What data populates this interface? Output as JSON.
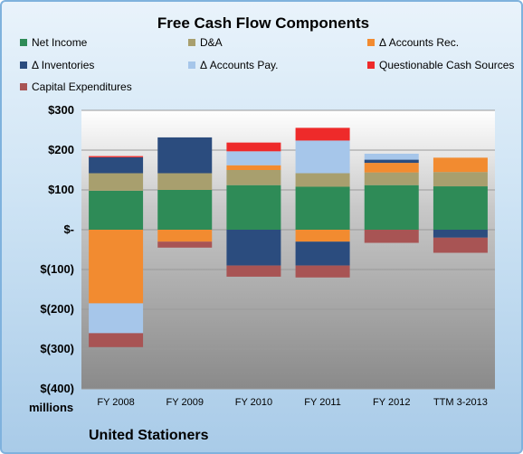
{
  "chart_data": {
    "type": "bar",
    "stacked": true,
    "title": "Free Cash Flow Components",
    "categories": [
      "FY 2008",
      "FY 2009",
      "FY 2010",
      "FY 2011",
      "FY 2012",
      "TTM 3-2013"
    ],
    "series": [
      {
        "name": "Net Income",
        "color": "#2e8b57",
        "values": [
          98,
          100,
          112,
          108,
          112,
          109
        ]
      },
      {
        "name": "D&A",
        "color": "#a89f6e",
        "values": [
          44,
          42,
          38,
          34,
          32,
          36
        ]
      },
      {
        "name": "Δ Accounts Rec.",
        "color": "#f28b30",
        "values": [
          -185,
          -30,
          12,
          -30,
          24,
          36
        ]
      },
      {
        "name": "Δ Inventories",
        "color": "#2b4c7e",
        "values": [
          40,
          90,
          -90,
          -60,
          8,
          -20
        ]
      },
      {
        "name": "Δ Accounts Pay.",
        "color": "#a6c6ea",
        "values": [
          -75,
          0,
          35,
          82,
          15,
          0
        ]
      },
      {
        "name": "Questionable Cash Sources",
        "color": "#ee2a2a",
        "values": [
          3,
          0,
          22,
          32,
          0,
          0
        ]
      },
      {
        "name": "Capital Expenditures",
        "color": "#a85454",
        "values": [
          -35,
          -15,
          -28,
          -30,
          -33,
          -38
        ]
      }
    ],
    "ylim": [
      -400,
      300
    ],
    "yticks": [
      300,
      200,
      100,
      0,
      -100,
      -200,
      -300,
      -400
    ],
    "ytick_labels": [
      "$300",
      "$200",
      "$100",
      "$-",
      "$(100)",
      "$(200)",
      "$(300)",
      "$(400)"
    ],
    "unit_label": "millions",
    "grid": true,
    "legend_position": "top"
  },
  "footer": "United Stationers"
}
